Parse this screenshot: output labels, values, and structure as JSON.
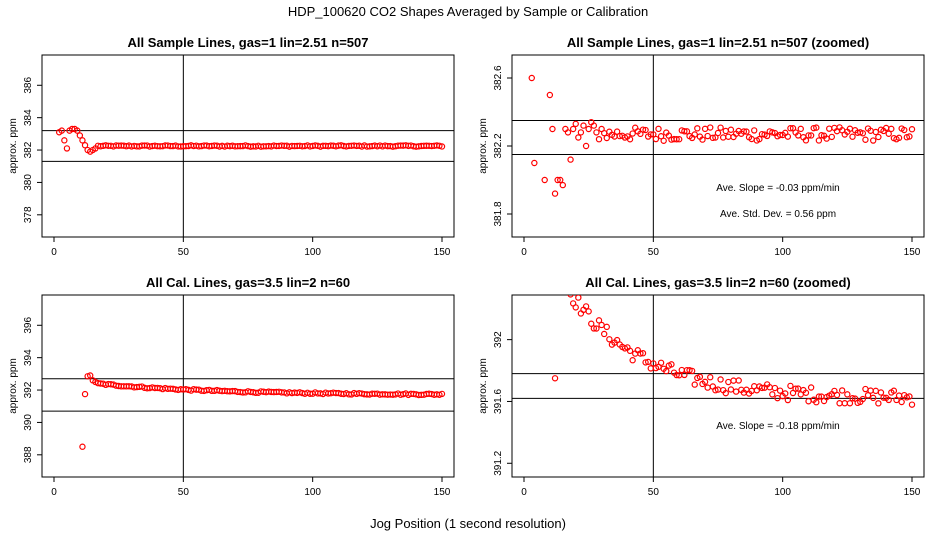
{
  "main_title": "HDP_100620  CO2 Shapes Averaged by Sample or Calibration",
  "x_caption": "Jog Position (1 second resolution)",
  "colors": {
    "points": "#ff0000",
    "axes": "#000000",
    "background": "#ffffff"
  },
  "chart_data": [
    {
      "type": "scatter",
      "title": "All Sample Lines, gas=1 lin=2.51 n=507",
      "ylabel": "approx. ppm",
      "xlim": [
        0,
        150
      ],
      "ylim": [
        377,
        387.5
      ],
      "x_ticks": [
        0,
        50,
        100,
        150
      ],
      "y_ticks": [
        378,
        380,
        382,
        384,
        386
      ],
      "hlines": [
        383.2,
        381.3
      ],
      "vline": 50,
      "annotations": [],
      "shape": {
        "x0": 2,
        "x1": 150,
        "early": [
          [
            2,
            383.1
          ],
          [
            3,
            383.2
          ],
          [
            4,
            382.6
          ],
          [
            5,
            382.1
          ],
          [
            6,
            383.2
          ],
          [
            7,
            383.3
          ],
          [
            8,
            383.3
          ],
          [
            9,
            383.2
          ],
          [
            10,
            382.9
          ],
          [
            11,
            382.6
          ],
          [
            12,
            382.3
          ],
          [
            13,
            382.0
          ],
          [
            14,
            381.9
          ],
          [
            15,
            382.0
          ],
          [
            16,
            382.1
          ]
        ],
        "base": 382.25,
        "noise": 0.04,
        "step": 1
      }
    },
    {
      "type": "scatter",
      "title": "All Sample Lines, gas=1 lin=2.51 n=507 (zoomed)",
      "ylabel": "approx. ppm",
      "xlim": [
        0,
        150
      ],
      "ylim": [
        381.7,
        382.7
      ],
      "x_ticks": [
        0,
        50,
        100,
        150
      ],
      "y_ticks": [
        381.8,
        382.2,
        382.6
      ],
      "hlines": [
        382.35,
        382.15
      ],
      "vline": 50,
      "annotations": [
        "Ave. Slope =  -0.03  ppm/min",
        "Ave. Std. Dev. =  0.56  ppm"
      ],
      "shape": {
        "x0": 3,
        "x1": 150,
        "early": [
          [
            3,
            382.6
          ],
          [
            4,
            382.1
          ],
          [
            8,
            382.0
          ],
          [
            10,
            382.5
          ],
          [
            11,
            382.3
          ],
          [
            12,
            381.92
          ],
          [
            13,
            382.0
          ],
          [
            14,
            382.0
          ],
          [
            15,
            381.97
          ],
          [
            16,
            382.3
          ],
          [
            17,
            382.28
          ],
          [
            18,
            382.12
          ],
          [
            19,
            382.3
          ],
          [
            20,
            382.33
          ],
          [
            21,
            382.25
          ],
          [
            22,
            382.28
          ],
          [
            23,
            382.32
          ],
          [
            24,
            382.2
          ],
          [
            25,
            382.3
          ],
          [
            26,
            382.34
          ],
          [
            27,
            382.32
          ],
          [
            28,
            382.28
          ],
          [
            29,
            382.24
          ],
          [
            30,
            382.3
          ]
        ],
        "base": 382.27,
        "noise": 0.04,
        "step": 1
      }
    },
    {
      "type": "scatter",
      "title": "All Cal. Lines, gas=3.5 lin=2 n=60",
      "ylabel": "approx. ppm",
      "xlim": [
        0,
        150
      ],
      "ylim": [
        387,
        397.5
      ],
      "x_ticks": [
        0,
        50,
        100,
        150
      ],
      "y_ticks": [
        388,
        390,
        392,
        394,
        396
      ],
      "hlines": [
        392.7,
        390.7
      ],
      "vline": 50,
      "annotations": [],
      "shape": {
        "x0": 11,
        "x1": 150,
        "early": [
          [
            11,
            388.5
          ],
          [
            12,
            391.75
          ],
          [
            13,
            392.85
          ],
          [
            14,
            392.9
          ],
          [
            15,
            392.6
          ],
          [
            16,
            392.5
          ]
        ],
        "base_start": 392.4,
        "base_end": 391.7,
        "noise": 0.05,
        "step": 1
      }
    },
    {
      "type": "scatter",
      "title": "All Cal. Lines, gas=3.5 lin=2 n=60 (zoomed)",
      "ylabel": "approx. ppm",
      "xlim": [
        0,
        150
      ],
      "ylim": [
        391.15,
        392.25
      ],
      "x_ticks": [
        0,
        50,
        100,
        150
      ],
      "y_ticks": [
        391.2,
        391.6,
        392.0
      ],
      "hlines": [
        391.78,
        391.62
      ],
      "vline": 50,
      "annotations": [
        "Ave. Slope =  -0.18  ppm/min"
      ],
      "shape": {
        "x0": 12,
        "x1": 150,
        "early": [
          [
            12,
            391.75
          ]
        ],
        "decay_from": 392.3,
        "decay_to": 391.62,
        "decay_rate": 0.035,
        "noise": 0.05,
        "step": 1
      }
    }
  ]
}
